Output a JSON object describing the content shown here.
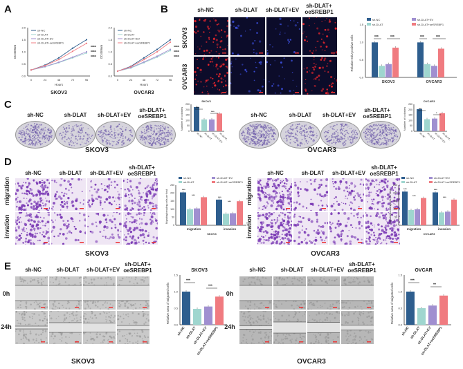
{
  "panels": {
    "A": {
      "letter": "A",
      "charts": [
        {
          "cell_line": "SKOV3",
          "xlabel": "Hours",
          "ylabel": "OD450nm",
          "x_ticks": [
            "0",
            "24",
            "48",
            "72",
            "96"
          ],
          "y_ticks": [
            "0.0",
            "0.5",
            "1.0",
            "1.5",
            "2.0"
          ],
          "legend": [
            "sh-NC",
            "sh-DLAT",
            "sh-DLAT+EV",
            "sh-DLAT+oeSREBP1"
          ],
          "sig": [
            "****",
            "****",
            "****"
          ]
        },
        {
          "cell_line": "OVCAR3",
          "xlabel": "Hours",
          "ylabel": "OD450nm",
          "x_ticks": [
            "0",
            "24",
            "48",
            "72",
            "96"
          ],
          "y_ticks": [
            "0.0",
            "0.5",
            "1.0",
            "1.5",
            "2.0"
          ],
          "legend": [
            "sh-NC",
            "sh-DLAT",
            "sh-DLAT+EV",
            "sh-DLAT+oeSREBP1"
          ],
          "sig": [
            "****",
            "****",
            "****"
          ]
        }
      ]
    },
    "B": {
      "letter": "B",
      "columns": [
        "sh-NC",
        "sh-DLAT",
        "sh-DLAT+EV",
        "sh-DLAT+\noeSREBP1"
      ],
      "rows": [
        "SKOV3",
        "OVCAR3"
      ],
      "chart": {
        "ylabel": "Relative EdU positive cells",
        "groups": [
          "SKOV3",
          "OVCAR3"
        ],
        "y_ticks": [
          "0.0",
          "0.5",
          "1.0",
          "1.5"
        ],
        "legend": [
          "sh-NC",
          "sh-DLAT",
          "sh-DLAT+EV",
          "sh-DLAT+oeSREBP1"
        ],
        "sig": [
          "***",
          "***",
          "***",
          "***"
        ]
      }
    },
    "C": {
      "letter": "C",
      "columns": [
        "sh-NC",
        "sh-DLAT",
        "sh-DLAT+EV",
        "sh-DLAT+\noeSREBP1"
      ],
      "left_line": "SKOV3",
      "right_line": "OVCAR3",
      "chart_left": {
        "title": "SKOV3",
        "ylabel": "Number of colonies",
        "y_ticks": [
          "0",
          "50",
          "100",
          "150",
          "200",
          "250"
        ],
        "categories": [
          "sh-NC",
          "sh-DLAT",
          "sh-DLAT+EV",
          "sh-DLAT+oeSREBP1"
        ],
        "sig": [
          "***",
          "***"
        ]
      },
      "chart_right": {
        "title": "OVCAR3",
        "ylabel": "Number of colonies",
        "y_ticks": [
          "0",
          "50",
          "100",
          "150",
          "200",
          "250"
        ],
        "categories": [
          "sh-NC",
          "sh-DLAT",
          "sh-DLAT+EV",
          "sh-DLAT+oeSREBP1"
        ],
        "sig": [
          "***",
          "*"
        ]
      }
    },
    "D": {
      "letter": "D",
      "columns": [
        "sh-NC",
        "sh-DLAT",
        "sh-DLAT+EV",
        "sh-DLAT+\noeSREBP1"
      ],
      "rows": [
        "migration",
        "invation"
      ],
      "left_line": "SKOV3",
      "right_line": "OVCAR3",
      "chart_left": {
        "title": "SKOV3",
        "ylabel": "Migrating/invading cells per field",
        "groups": [
          "migration",
          "invasion"
        ],
        "y_ticks": [
          "0",
          "50",
          "100",
          "150",
          "200",
          "250"
        ],
        "legend": [
          "sh-NC",
          "sh-DLAT",
          "sh-DLAT+EV",
          "sh-DLAT+oeSREBP1"
        ],
        "sig": [
          "***",
          "***",
          "***",
          "***"
        ]
      },
      "chart_right": {
        "title": "OVCAR3",
        "ylabel": "Migrating/invading cells per field",
        "groups": [
          "migration",
          "invasion"
        ],
        "y_ticks": [
          "0",
          "50",
          "100",
          "150",
          "200",
          "250"
        ],
        "legend": [
          "sh-NC",
          "sh-DLAT",
          "sh-DLAT+EV",
          "sh-DLAT+oeSREBP1"
        ],
        "sig": [
          "***",
          "***",
          "***",
          "***"
        ]
      }
    },
    "E": {
      "letter": "E",
      "columns": [
        "sh-NC",
        "sh-DLAT",
        "sh-DLAT+EV",
        "sh-DLAT+\noeSREBP1"
      ],
      "rows": [
        "0h",
        "24h"
      ],
      "left_line": "SKOV3",
      "right_line": "OVCAR3",
      "chart_left": {
        "title": "SKOV3",
        "ylabel": "Relative area of migrated cells",
        "y_ticks": [
          "0.0",
          "0.5",
          "1.0",
          "1.5"
        ],
        "categories": [
          "sh-NC",
          "sh-DLAT",
          "sh-DLAT+EV",
          "sh-DLAT+oeSREBP1"
        ],
        "sig": [
          "***",
          "***"
        ]
      },
      "chart_right": {
        "title": "OVCAR",
        "ylabel": "Relative area of migrated cells",
        "y_ticks": [
          "0.0",
          "0.5",
          "1.0",
          "1.5"
        ],
        "categories": [
          "sh-NC",
          "sh-DLAT",
          "sh-DLAT+EV",
          "sh-DLAT+oeSREBP1"
        ],
        "sig": [
          "***",
          "**"
        ]
      }
    }
  },
  "colors": {
    "nc": "#2e5e8e",
    "dlat": "#9fd6cf",
    "ev": "#a08fd0",
    "oe": "#f07b80"
  },
  "chart_data": [
    {
      "type": "line",
      "title": "SKOV3",
      "xlabel": "Hours",
      "ylabel": "OD450nm",
      "x": [
        0,
        24,
        48,
        72,
        96
      ],
      "ylim": [
        0,
        2
      ],
      "series": [
        {
          "name": "sh-NC",
          "values": [
            0.25,
            0.45,
            0.75,
            1.15,
            1.5
          ]
        },
        {
          "name": "sh-DLAT",
          "values": [
            0.25,
            0.38,
            0.55,
            0.75,
            0.95
          ]
        },
        {
          "name": "sh-DLAT+EV",
          "values": [
            0.25,
            0.39,
            0.57,
            0.78,
            1.0
          ]
        },
        {
          "name": "sh-DLAT+oeSREBP1",
          "values": [
            0.25,
            0.43,
            0.68,
            1.02,
            1.35
          ]
        }
      ]
    },
    {
      "type": "line",
      "title": "OVCAR3",
      "xlabel": "Hours",
      "ylabel": "OD450nm",
      "x": [
        0,
        24,
        48,
        72,
        96
      ],
      "ylim": [
        0,
        2
      ],
      "series": [
        {
          "name": "sh-NC",
          "values": [
            0.2,
            0.4,
            0.75,
            1.1,
            1.5
          ]
        },
        {
          "name": "sh-DLAT",
          "values": [
            0.2,
            0.33,
            0.55,
            0.78,
            1.05
          ]
        },
        {
          "name": "sh-DLAT+EV",
          "values": [
            0.2,
            0.35,
            0.58,
            0.82,
            1.1
          ]
        },
        {
          "name": "sh-DLAT+oeSREBP1",
          "values": [
            0.2,
            0.38,
            0.68,
            1.0,
            1.4
          ]
        }
      ]
    },
    {
      "type": "bar",
      "ylabel": "Relative EdU positive cells",
      "categories": [
        "SKOV3",
        "OVCAR3"
      ],
      "ylim": [
        0,
        1.5
      ],
      "series": [
        {
          "name": "sh-NC",
          "values": [
            1.0,
            1.0
          ]
        },
        {
          "name": "sh-DLAT",
          "values": [
            0.33,
            0.38
          ]
        },
        {
          "name": "sh-DLAT+EV",
          "values": [
            0.38,
            0.33
          ]
        },
        {
          "name": "sh-DLAT+oeSREBP1",
          "values": [
            0.85,
            0.82
          ]
        }
      ]
    },
    {
      "type": "bar",
      "title": "SKOV3",
      "ylabel": "Number of colonies",
      "categories": [
        "sh-NC",
        "sh-DLAT",
        "sh-DLAT+EV",
        "sh-DLAT+oeSREBP1"
      ],
      "values": [
        225,
        110,
        110,
        165
      ],
      "ylim": [
        0,
        250
      ]
    },
    {
      "type": "bar",
      "title": "OVCAR3",
      "ylabel": "Number of colonies",
      "categories": [
        "sh-NC",
        "sh-DLAT",
        "sh-DLAT+EV",
        "sh-DLAT+oeSREBP1"
      ],
      "values": [
        205,
        112,
        118,
        168
      ],
      "ylim": [
        0,
        250
      ]
    },
    {
      "type": "bar",
      "title": "SKOV3",
      "ylabel": "Migrating/invading cells per field",
      "categories": [
        "migration",
        "invasion"
      ],
      "ylim": [
        0,
        250
      ],
      "series": [
        {
          "name": "sh-NC",
          "values": [
            205,
            160
          ]
        },
        {
          "name": "sh-DLAT",
          "values": [
            100,
            72
          ]
        },
        {
          "name": "sh-DLAT+EV",
          "values": [
            105,
            75
          ]
        },
        {
          "name": "sh-DLAT+oeSREBP1",
          "values": [
            175,
            150
          ]
        }
      ]
    },
    {
      "type": "bar",
      "title": "OVCAR3",
      "ylabel": "Migrating/invading cells per field",
      "categories": [
        "migration",
        "invasion"
      ],
      "ylim": [
        0,
        250
      ],
      "series": [
        {
          "name": "sh-NC",
          "values": [
            210,
            205
          ]
        },
        {
          "name": "sh-DLAT",
          "values": [
            95,
            80
          ]
        },
        {
          "name": "sh-DLAT+EV",
          "values": [
            100,
            85
          ]
        },
        {
          "name": "sh-DLAT+oeSREBP1",
          "values": [
            170,
            160
          ]
        }
      ]
    },
    {
      "type": "bar",
      "title": "SKOV3",
      "ylabel": "Relative area of migrated cells",
      "categories": [
        "sh-NC",
        "sh-DLAT",
        "sh-DLAT+EV",
        "sh-DLAT+oeSREBP1"
      ],
      "values": [
        1.0,
        0.48,
        0.55,
        0.85
      ],
      "ylim": [
        0,
        1.5
      ]
    },
    {
      "type": "bar",
      "title": "OVCAR",
      "ylabel": "Relative area of migrated cells",
      "categories": [
        "sh-NC",
        "sh-DLAT",
        "sh-DLAT+EV",
        "sh-DLAT+oeSREBP1"
      ],
      "values": [
        1.0,
        0.5,
        0.58,
        0.88
      ],
      "ylim": [
        0,
        1.5
      ]
    }
  ]
}
